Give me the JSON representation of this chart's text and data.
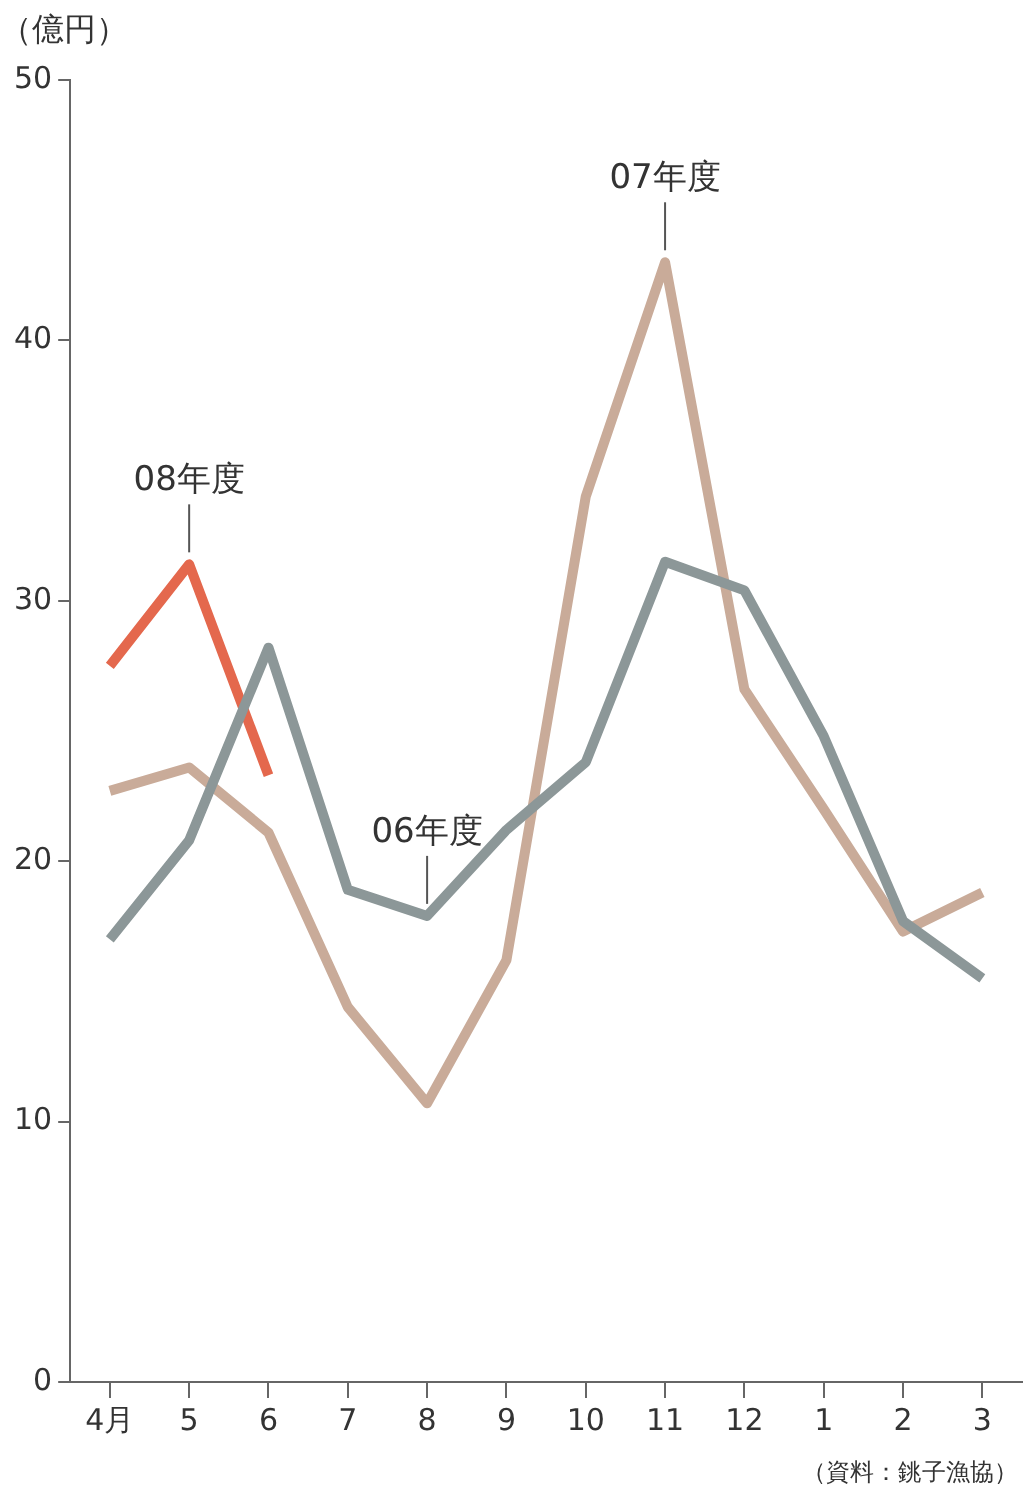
{
  "chart_data": {
    "type": "line",
    "ylabel": "（億円）",
    "categories": [
      "4月",
      "5",
      "6",
      "7",
      "8",
      "9",
      "10",
      "11",
      "12",
      "1",
      "2",
      "3"
    ],
    "series": [
      {
        "color": "#8c9798",
        "values": [
          17.0,
          20.8,
          28.2,
          18.9,
          17.9,
          21.2,
          23.8,
          31.5,
          30.4,
          24.8,
          17.7,
          15.5
        ]
      },
      {
        "color": "#c9ab99",
        "values": [
          22.7,
          23.6,
          21.1,
          14.4,
          10.7,
          16.2,
          34.0,
          43.0,
          26.6,
          22.0,
          17.3,
          18.8
        ]
      },
      {
        "color": "#e4684d",
        "values": [
          27.5,
          31.4,
          23.3,
          null,
          null,
          null,
          null,
          null,
          null,
          null,
          null,
          null
        ]
      }
    ],
    "ylim": [
      0,
      50
    ],
    "yticks": [
      0,
      10,
      20,
      30,
      40,
      50
    ],
    "grid": false,
    "legend": false,
    "marker": "none",
    "line_style": "solid",
    "annotations": [
      {
        "text": "08年度",
        "x": "5",
        "y": 31.4
      },
      {
        "text": "07年度",
        "x": "11",
        "y": 43.0
      },
      {
        "text": "06年度",
        "x": "8",
        "y": 17.9
      },
      "（資料：銚子漁協）"
    ]
  }
}
